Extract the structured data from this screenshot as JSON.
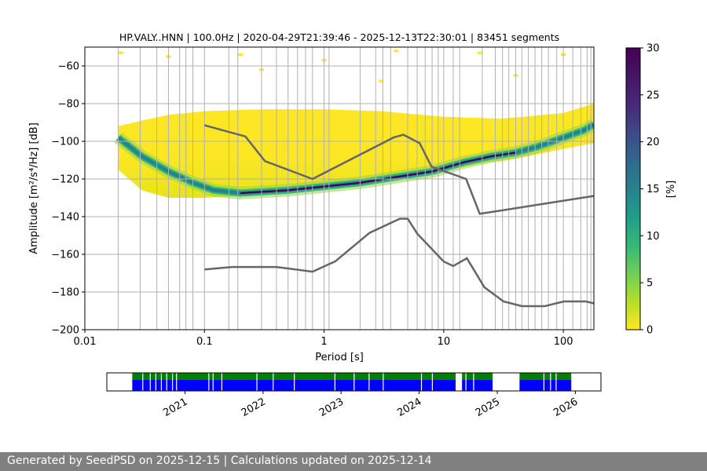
{
  "chart_data": [
    {
      "type": "heatmap",
      "title": "HP.VALY..HNN | 100.0Hz | 2020-04-29T21:39:46 - 2025-12-13T22:30:01 | 83451 segments",
      "xlabel": "Period [s]",
      "ylabel": "Amplitude [m²/s⁴/Hz] [dB]",
      "xscale": "log",
      "xlim": [
        0.01,
        180
      ],
      "ylim": [
        -200,
        -50
      ],
      "xticks": [
        {
          "value": 0.01,
          "label": "0.01"
        },
        {
          "value": 0.1,
          "label": "0.1"
        },
        {
          "value": 1,
          "label": "1"
        },
        {
          "value": 10,
          "label": "10"
        },
        {
          "value": 100,
          "label": "100"
        }
      ],
      "yticks": [
        {
          "value": -200,
          "label": "−200"
        },
        {
          "value": -180,
          "label": "−180"
        },
        {
          "value": -160,
          "label": "−160"
        },
        {
          "value": -140,
          "label": "−140"
        },
        {
          "value": -120,
          "label": "−120"
        },
        {
          "value": -100,
          "label": "−100"
        },
        {
          "value": -80,
          "label": "−80"
        },
        {
          "value": -60,
          "label": "−60"
        }
      ],
      "grid": true,
      "colormap": "viridis_r",
      "colorbar": {
        "label": "[%]",
        "min": 0,
        "max": 30,
        "ticks": [
          {
            "value": 0,
            "label": "0"
          },
          {
            "value": 5,
            "label": "5"
          },
          {
            "value": 10,
            "label": "10"
          },
          {
            "value": 15,
            "label": "15"
          },
          {
            "value": 20,
            "label": "20"
          },
          {
            "value": 25,
            "label": "25"
          },
          {
            "value": 30,
            "label": "30"
          }
        ]
      },
      "psd_mode_curve": [
        {
          "x": 0.019,
          "y": -98
        },
        {
          "x": 0.03,
          "y": -108
        },
        {
          "x": 0.05,
          "y": -116
        },
        {
          "x": 0.08,
          "y": -122
        },
        {
          "x": 0.12,
          "y": -126
        },
        {
          "x": 0.2,
          "y": -127.5
        },
        {
          "x": 0.5,
          "y": -126
        },
        {
          "x": 1,
          "y": -124
        },
        {
          "x": 2,
          "y": -122
        },
        {
          "x": 4,
          "y": -119
        },
        {
          "x": 8,
          "y": -116
        },
        {
          "x": 15,
          "y": -111
        },
        {
          "x": 25,
          "y": -108
        },
        {
          "x": 40,
          "y": -106
        },
        {
          "x": 60,
          "y": -103
        },
        {
          "x": 100,
          "y": -98
        },
        {
          "x": 150,
          "y": -94
        },
        {
          "x": 180,
          "y": -91
        }
      ],
      "psd_envelope": {
        "upper": [
          {
            "x": 0.019,
            "y": -92
          },
          {
            "x": 0.03,
            "y": -89
          },
          {
            "x": 0.05,
            "y": -86
          },
          {
            "x": 0.1,
            "y": -84
          },
          {
            "x": 0.3,
            "y": -83
          },
          {
            "x": 1,
            "y": -83
          },
          {
            "x": 3,
            "y": -84
          },
          {
            "x": 10,
            "y": -87
          },
          {
            "x": 30,
            "y": -88
          },
          {
            "x": 100,
            "y": -85
          },
          {
            "x": 180,
            "y": -80
          }
        ],
        "lower": [
          {
            "x": 0.019,
            "y": -115
          },
          {
            "x": 0.03,
            "y": -126
          },
          {
            "x": 0.05,
            "y": -130
          },
          {
            "x": 0.1,
            "y": -130
          },
          {
            "x": 0.2,
            "y": -129
          },
          {
            "x": 0.5,
            "y": -127
          },
          {
            "x": 1,
            "y": -125
          },
          {
            "x": 3,
            "y": -121
          },
          {
            "x": 8,
            "y": -117
          },
          {
            "x": 20,
            "y": -112
          },
          {
            "x": 50,
            "y": -108
          },
          {
            "x": 100,
            "y": -104
          },
          {
            "x": 180,
            "y": -101
          }
        ]
      },
      "nhnm": [
        {
          "x": 0.1,
          "y": -91.5
        },
        {
          "x": 0.22,
          "y": -97.4
        },
        {
          "x": 0.32,
          "y": -110.5
        },
        {
          "x": 0.8,
          "y": -120
        },
        {
          "x": 3.8,
          "y": -98
        },
        {
          "x": 4.6,
          "y": -96.5
        },
        {
          "x": 6.3,
          "y": -101
        },
        {
          "x": 7.9,
          "y": -113.5
        },
        {
          "x": 15.4,
          "y": -120
        },
        {
          "x": 20,
          "y": -138.5
        },
        {
          "x": 180,
          "y": -129
        }
      ],
      "nlnm": [
        {
          "x": 0.1,
          "y": -168
        },
        {
          "x": 0.17,
          "y": -166.7
        },
        {
          "x": 0.4,
          "y": -166.7
        },
        {
          "x": 0.8,
          "y": -169.2
        },
        {
          "x": 1.24,
          "y": -163.7
        },
        {
          "x": 2.4,
          "y": -148.6
        },
        {
          "x": 4.3,
          "y": -141.1
        },
        {
          "x": 5.0,
          "y": -141.1
        },
        {
          "x": 6.0,
          "y": -149
        },
        {
          "x": 10.0,
          "y": -163.8
        },
        {
          "x": 12,
          "y": -166.2
        },
        {
          "x": 15.6,
          "y": -162.1
        },
        {
          "x": 21.9,
          "y": -177.5
        },
        {
          "x": 31.6,
          "y": -185
        },
        {
          "x": 45,
          "y": -187.5
        },
        {
          "x": 70,
          "y": -187.5
        },
        {
          "x": 101,
          "y": -185
        },
        {
          "x": 154,
          "y": -185
        },
        {
          "x": 180,
          "y": -186
        }
      ],
      "scatter_points": [
        {
          "x": 0.02,
          "y": -53
        },
        {
          "x": 0.05,
          "y": -55
        },
        {
          "x": 0.2,
          "y": -54
        },
        {
          "x": 1,
          "y": -57
        },
        {
          "x": 4,
          "y": -52
        },
        {
          "x": 20,
          "y": -53
        },
        {
          "x": 100,
          "y": -54
        },
        {
          "x": 0.3,
          "y": -62
        },
        {
          "x": 3,
          "y": -68
        },
        {
          "x": 40,
          "y": -65
        }
      ],
      "coverage_lines_x": [
        0.019,
        0.029,
        0.04,
        0.05,
        0.062,
        0.07,
        0.08,
        0.1,
        0.16,
        0.19,
        0.3,
        0.4,
        0.5,
        0.6,
        0.7,
        0.8,
        1.0,
        1.1,
        2.0,
        2.7,
        3.1,
        3.6,
        5.0,
        6.0,
        7.0,
        8.0,
        9.0,
        10.0,
        12.0,
        13.6,
        21,
        27,
        31,
        35,
        40,
        45,
        51,
        58,
        66,
        75,
        88,
        100,
        120,
        140,
        158,
        170
      ]
    },
    {
      "type": "timeline",
      "x_axis": "date",
      "xlim": [
        "2020-01-01",
        "2026-05-01"
      ],
      "xticks": [
        {
          "value": "2021-01-01",
          "label": "2021"
        },
        {
          "value": "2022-01-01",
          "label": "2022"
        },
        {
          "value": "2023-01-01",
          "label": "2023"
        },
        {
          "value": "2024-01-01",
          "label": "2024"
        },
        {
          "value": "2025-01-01",
          "label": "2025"
        },
        {
          "value": "2026-01-01",
          "label": "2026"
        }
      ],
      "colors": {
        "available": "#0000ff",
        "processed": "#008000",
        "gap": "#ffffff"
      },
      "segments": [
        {
          "start": "2020-04-29",
          "end": "2024-06-20"
        },
        {
          "start": "2024-07-20",
          "end": "2024-12-10"
        },
        {
          "start": "2025-04-15",
          "end": "2025-12-13"
        }
      ],
      "gaps": [
        "2020-06-15",
        "2020-07-20",
        "2020-08-15",
        "2020-09-10",
        "2020-10-05",
        "2020-11-01",
        "2020-11-20",
        "2021-04-20",
        "2021-05-10",
        "2021-06-20",
        "2021-12-01",
        "2022-02-15",
        "2022-05-25",
        "2022-12-01",
        "2023-03-01",
        "2023-05-10",
        "2023-07-15",
        "2024-01-10",
        "2024-03-01",
        "2024-08-05",
        "2024-09-10",
        "2025-08-05",
        "2025-09-05",
        "2025-10-01"
      ]
    }
  ],
  "footer": {
    "text": "Generated by SeedPSD on 2025-12-15 | Calculations updated on 2025-12-14"
  }
}
